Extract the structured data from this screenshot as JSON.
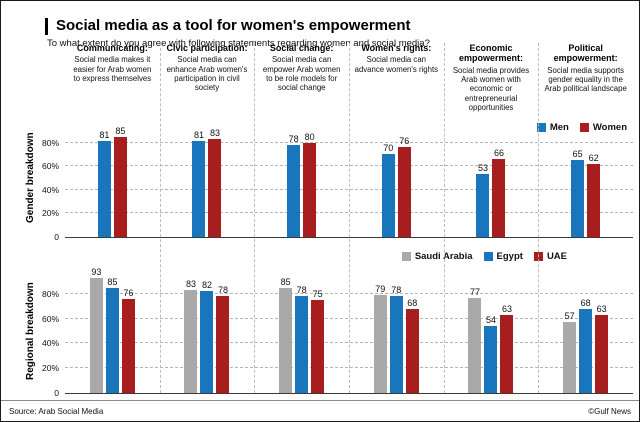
{
  "header": {
    "title": "Social media as a tool for women's empowerment",
    "subtitle": "To what extent do you agree with following statements regarding women and social media?"
  },
  "columns": [
    {
      "title": "Communicating:",
      "desc": "Social media makes it easier for Arab women to express themselves"
    },
    {
      "title": "Civic participation:",
      "desc": "Social media can enhance Arab women's participation in civil society"
    },
    {
      "title": "Social change:",
      "desc": "Social media can empower Arab women to be role models for social change"
    },
    {
      "title": "Women's rights:",
      "desc": "Social media can advance women's rights"
    },
    {
      "title": "Economic empowerment:",
      "desc": "Social media provides Arab women with economic or entrepreneurial opportunities"
    },
    {
      "title": "Political empowerment:",
      "desc": "Social media supports gender equality in the Arab political landscape"
    }
  ],
  "colors": {
    "blue": "#1a76bc",
    "red": "#a81d1d",
    "gray": "#a9a9a9"
  },
  "chart_data": [
    {
      "type": "bar",
      "title": "Gender breakdown",
      "categories": [
        "Communicating",
        "Civic participation",
        "Social change",
        "Women's rights",
        "Economic empowerment",
        "Political empowerment"
      ],
      "series": [
        {
          "name": "Men",
          "color": "blue",
          "values": [
            81,
            81,
            78,
            70,
            53,
            65
          ]
        },
        {
          "name": "Women",
          "color": "red",
          "values": [
            85,
            83,
            80,
            76,
            66,
            62
          ]
        }
      ],
      "ylim": [
        0,
        100
      ],
      "yticks": [
        {
          "label": "80%",
          "value": 80
        },
        {
          "label": "60%",
          "value": 60
        },
        {
          "label": "40%",
          "value": 40
        },
        {
          "label": "20%",
          "value": 20
        },
        {
          "label": "0",
          "value": 0
        }
      ],
      "grid": "dashed-horizontal",
      "legend_position": "top-right"
    },
    {
      "type": "bar",
      "title": "Regional breakdown",
      "categories": [
        "Communicating",
        "Civic participation",
        "Social change",
        "Women's rights",
        "Economic empowerment",
        "Political empowerment"
      ],
      "series": [
        {
          "name": "Saudi Arabia",
          "color": "gray",
          "values": [
            93,
            83,
            85,
            79,
            77,
            57
          ]
        },
        {
          "name": "Egypt",
          "color": "blue",
          "values": [
            85,
            82,
            78,
            78,
            54,
            68
          ]
        },
        {
          "name": "UAE",
          "color": "red",
          "values": [
            76,
            78,
            75,
            68,
            63,
            63
          ]
        }
      ],
      "ylim": [
        0,
        100
      ],
      "yticks": [
        {
          "label": "80%",
          "value": 80
        },
        {
          "label": "60%",
          "value": 60
        },
        {
          "label": "40%",
          "value": 40
        },
        {
          "label": "20%",
          "value": 20
        },
        {
          "label": "0",
          "value": 0
        }
      ],
      "grid": "dashed-horizontal",
      "legend_position": "top-right"
    }
  ],
  "footer": {
    "source": "Source: Arab Social Media",
    "credit": "©Gulf News"
  }
}
